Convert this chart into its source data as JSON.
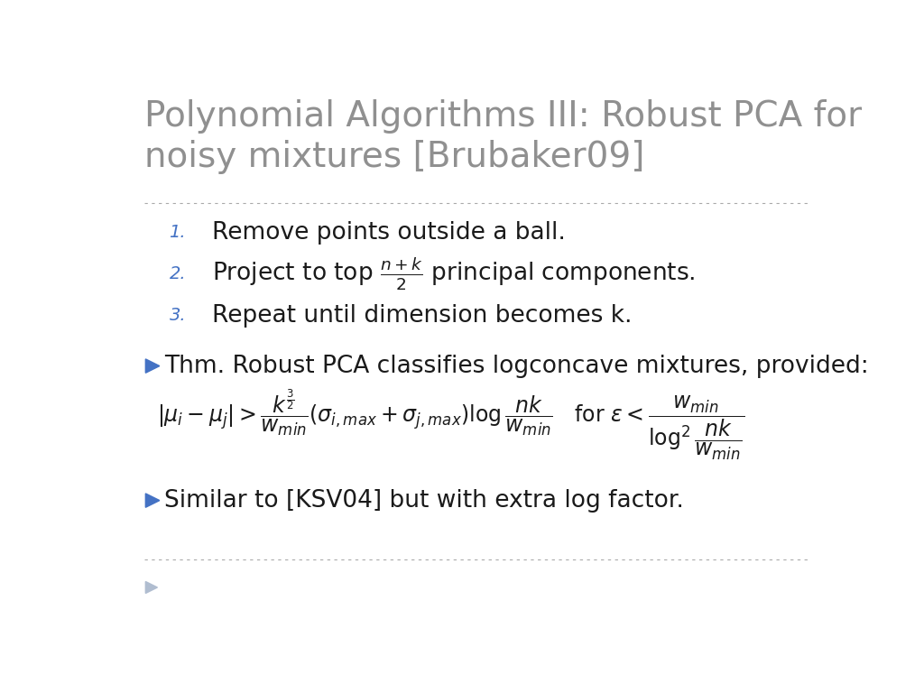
{
  "title": "Polynomial Algorithms III: Robust PCA for\nnoisy mixtures [Brubaker09]",
  "title_color": "#909090",
  "title_fontsize": 28,
  "bg_color": "#ffffff",
  "bullet_color": "#4472c4",
  "text_color": "#1a1a1a",
  "numbered_items": [
    "Remove points outside a ball.",
    "Project to top $\\frac{n+k}{2}$ principal components.",
    "Repeat until dimension becomes k."
  ],
  "thm_text": "Thm. Robust PCA classifies logconcave mixtures, provided:",
  "formula": "$|\\mu_i - \\mu_j| > \\dfrac{k^{\\frac{3}{2}}}{w_{min}}(\\sigma_{i,max} + \\sigma_{j,max}) \\log \\dfrac{nk}{w_{min}}$   for $\\epsilon < \\dfrac{w_{min}}{\\log^2 \\dfrac{nk}{w_{min}}}$",
  "similar_text": "Similar to [KSV04] but with extra log factor.",
  "number_color": "#4472c4",
  "separator_color": "#aaaaaa",
  "bottom_bullet_color": "#b0bdd0",
  "item_fontsize": 19,
  "thm_fontsize": 19,
  "formula_fontsize": 17,
  "number_fontsize": 14
}
